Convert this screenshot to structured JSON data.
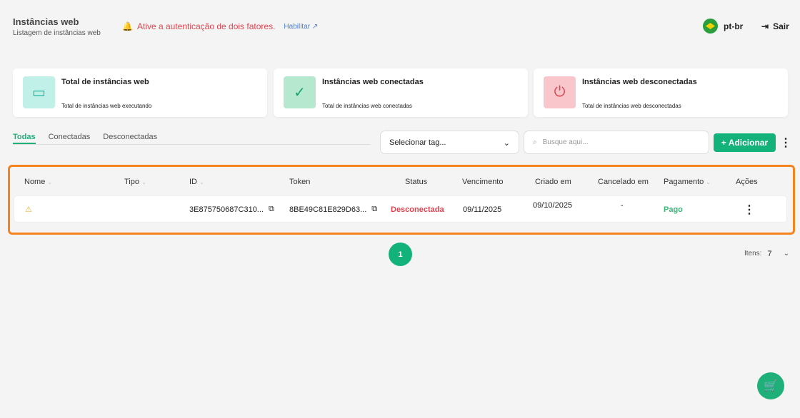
{
  "header": {
    "title": "Instâncias web",
    "subtitle": "Listagem de instâncias web",
    "alert": "Ative a autenticação de dois fatores.",
    "enable_link": "Habilitar",
    "language": "pt-br",
    "logout": "Sair"
  },
  "cards": [
    {
      "title": "Total de instâncias web",
      "subtitle": "Total de instâncias web executando",
      "icon": "server-icon",
      "bg": "#c0f0e8",
      "color": "#18b39a"
    },
    {
      "title": "Instâncias web conectadas",
      "subtitle": "Total de instâncias web conectadas",
      "icon": "check-circle-icon",
      "bg": "#b6e8cf",
      "color": "#14a765"
    },
    {
      "title": "Instâncias web desconectadas",
      "subtitle": "Total de instâncias web desconectadas",
      "icon": "power-icon",
      "bg": "#f9c6cb",
      "color": "#e0454f"
    }
  ],
  "tabs": [
    "Todas",
    "Conectadas",
    "Desconectadas"
  ],
  "filters": {
    "tag_placeholder": "Selecionar tag...",
    "search_placeholder": "Busque aqui...",
    "add_label": "+ Adicionar"
  },
  "table": {
    "columns": [
      "Nome",
      "Tipo",
      "ID",
      "Token",
      "Status",
      "Vencimento",
      "Criado em",
      "Cancelado em",
      "Pagamento",
      "Ações"
    ],
    "rows": [
      {
        "nome": "",
        "tipo": "",
        "id": "3E875750687C310...",
        "token": "8BE49C81E829D63...",
        "status": "Desconectada",
        "vencimento": "09/11/2025",
        "criado": "09/10/2025",
        "cancelado": "-",
        "pagamento": "Pago"
      }
    ]
  },
  "pagination": {
    "page": "1",
    "items_label": "Itens:",
    "items_value": "7"
  },
  "colors": {
    "accent": "#13b27a",
    "danger": "#e0454f",
    "highlight": "#f5841f"
  }
}
